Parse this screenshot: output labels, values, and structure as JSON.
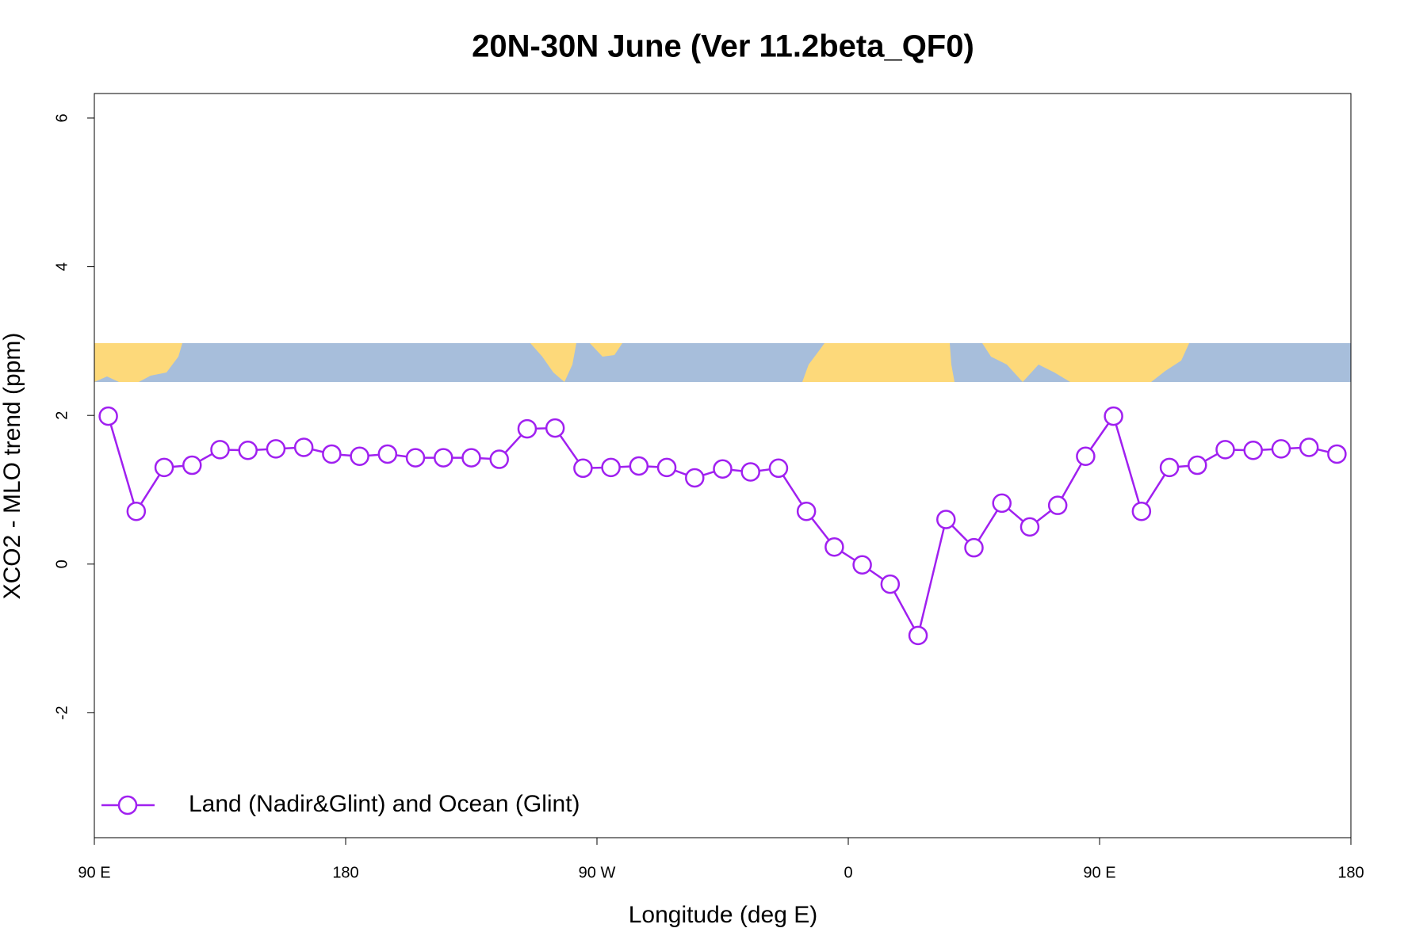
{
  "chart_data": {
    "type": "line",
    "title": "20N-30N June (Ver 11.2beta_QF0)",
    "x_label": "Longitude (deg E)",
    "y_label": "XCO2 - MLO trend (ppm)",
    "x": [
      95,
      105,
      115,
      125,
      135,
      145,
      155,
      165,
      175,
      185,
      195,
      205,
      215,
      225,
      235,
      245,
      255,
      265,
      275,
      285,
      295,
      305,
      315,
      325,
      335,
      345,
      355,
      365,
      375,
      385,
      395,
      405,
      415,
      425,
      435,
      445,
      455,
      465,
      475,
      485,
      495,
      505,
      515,
      525,
      535
    ],
    "series": [
      {
        "name": "Land (Nadir&Glint) and Ocean (Glint)",
        "color": "#a020f0",
        "values": [
          1.99,
          0.71,
          1.3,
          1.33,
          1.54,
          1.53,
          1.55,
          1.57,
          1.48,
          1.45,
          1.48,
          1.43,
          1.43,
          1.43,
          1.41,
          1.82,
          1.83,
          1.29,
          1.3,
          1.32,
          1.3,
          1.16,
          1.28,
          1.24,
          1.29,
          0.71,
          0.23,
          -0.01,
          -0.27,
          -0.96,
          0.6,
          0.22,
          0.82,
          0.5,
          0.79,
          1.45,
          1.99,
          0.71,
          1.3,
          1.33,
          1.54,
          1.53,
          1.55,
          1.57,
          1.48
        ]
      }
    ],
    "xlim": [
      90,
      540
    ],
    "xticks": [
      {
        "value": 90,
        "label": "90 E"
      },
      {
        "value": 180,
        "label": "180"
      },
      {
        "value": 270,
        "label": "90 W"
      },
      {
        "value": 360,
        "label": "0"
      },
      {
        "value": 450,
        "label": "90 E"
      },
      {
        "value": 540,
        "label": "180"
      }
    ],
    "ylim": [
      -3.68,
      6.33
    ],
    "yticks": [
      -2,
      0,
      2,
      4,
      6
    ],
    "legend": "bottomleft",
    "grid": false
  }
}
